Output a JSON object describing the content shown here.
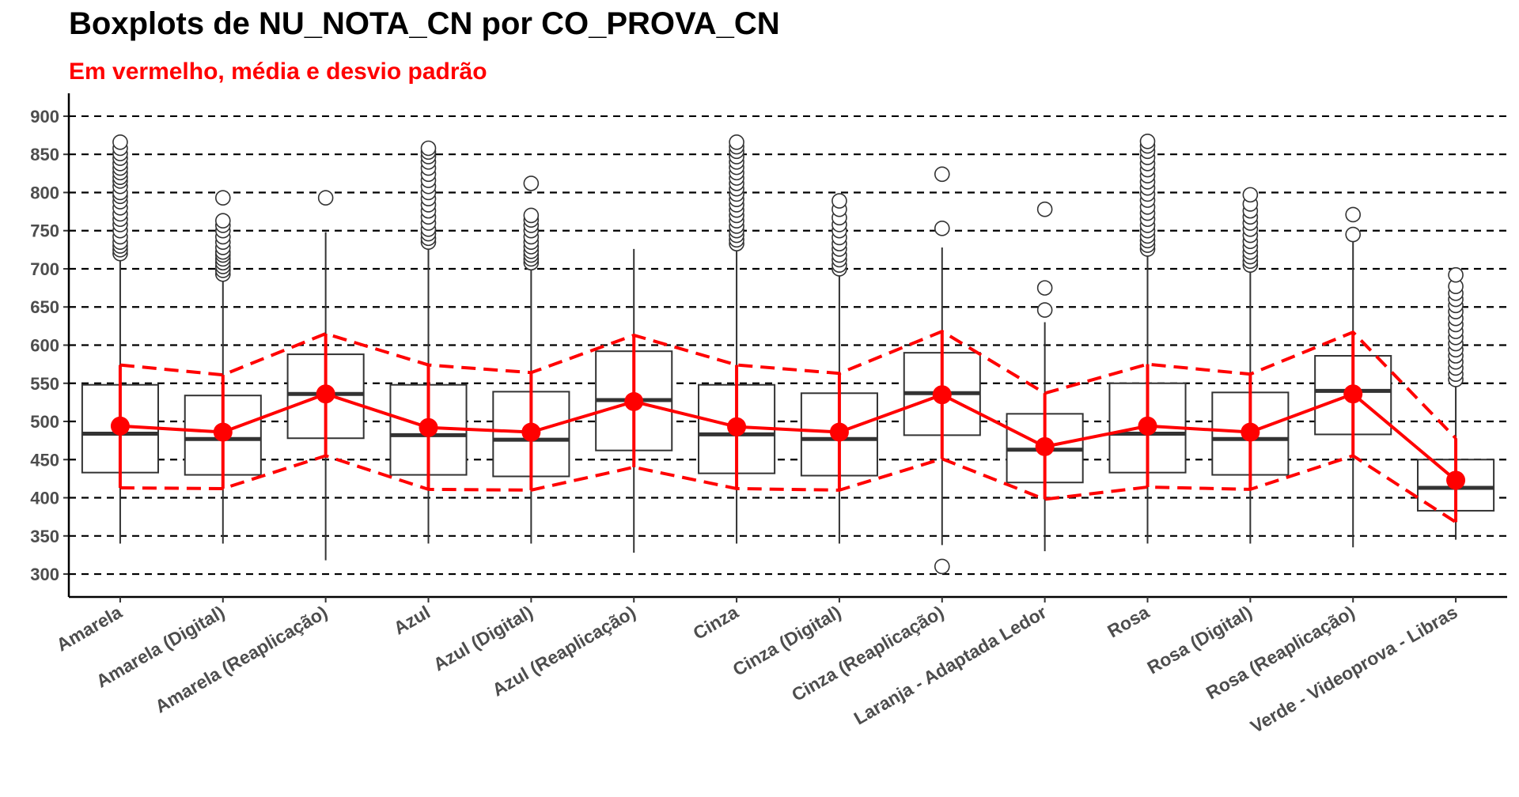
{
  "chart_data": {
    "type": "boxplot",
    "title": "Boxplots de NU_NOTA_CN por CO_PROVA_CN",
    "subtitle": "Em vermelho, média e desvio padrão",
    "xlabel": "",
    "ylabel": "",
    "ylim": [
      270,
      930
    ],
    "yticks": [
      300,
      350,
      400,
      450,
      500,
      550,
      600,
      650,
      700,
      750,
      800,
      850,
      900
    ],
    "grid": "horizontal dashed",
    "colors": {
      "box": "#333333",
      "mean": "#ff0000",
      "grid": "#000000",
      "outlier_fill": "#ffffff"
    },
    "categories": [
      "Amarela",
      "Amarela (Digital)",
      "Amarela (Reaplicação)",
      "Azul",
      "Azul (Digital)",
      "Azul (Reaplicação)",
      "Cinza",
      "Cinza (Digital)",
      "Cinza (Reaplicação)",
      "Laranja - Adaptada Ledor",
      "Rosa",
      "Rosa (Digital)",
      "Rosa (Reaplicação)",
      "Verde - Videoprova - Libras"
    ],
    "boxes": [
      {
        "whisker_low": 340,
        "q1": 433,
        "median": 484,
        "q3": 548,
        "whisker_high": 718,
        "outliers": [
          720,
          725,
          730,
          735,
          742,
          750,
          758,
          765,
          772,
          780,
          788,
          795,
          800,
          808,
          815,
          820,
          826,
          832,
          838,
          845,
          851,
          858,
          866
        ]
      },
      {
        "whisker_low": 340,
        "q1": 430,
        "median": 477,
        "q3": 534,
        "whisker_high": 690,
        "outliers": [
          693,
          698,
          703,
          708,
          713,
          718,
          722,
          728,
          735,
          742,
          750,
          757,
          763,
          793
        ]
      },
      {
        "whisker_low": 318,
        "q1": 478,
        "median": 536,
        "q3": 588,
        "whisker_high": 748,
        "outliers": [
          793
        ]
      },
      {
        "whisker_low": 340,
        "q1": 430,
        "median": 482,
        "q3": 548,
        "whisker_high": 730,
        "outliers": [
          735,
          740,
          746,
          752,
          760,
          768,
          776,
          784,
          792,
          800,
          808,
          816,
          824,
          832,
          840,
          847,
          853,
          858
        ]
      },
      {
        "whisker_low": 340,
        "q1": 428,
        "median": 476,
        "q3": 539,
        "whisker_high": 700,
        "outliers": [
          708,
          713,
          718,
          723,
          729,
          735,
          742,
          750,
          757,
          764,
          770,
          812
        ]
      },
      {
        "whisker_low": 328,
        "q1": 462,
        "median": 528,
        "q3": 592,
        "whisker_high": 726,
        "outliers": []
      },
      {
        "whisker_low": 340,
        "q1": 432,
        "median": 483,
        "q3": 548,
        "whisker_high": 728,
        "outliers": [
          733,
          738,
          744,
          750,
          756,
          763,
          770,
          777,
          784,
          791,
          798,
          805,
          812,
          819,
          826,
          833,
          840,
          847,
          854,
          860,
          866
        ]
      },
      {
        "whisker_low": 340,
        "q1": 429,
        "median": 477,
        "q3": 537,
        "whisker_high": 696,
        "outliers": [
          700,
          705,
          712,
          718,
          726,
          733,
          741,
          750,
          758,
          767,
          778,
          789
        ]
      },
      {
        "whisker_low": 338,
        "q1": 482,
        "median": 537,
        "q3": 590,
        "whisker_high": 728,
        "outliers": [
          310,
          753,
          824
        ]
      },
      {
        "whisker_low": 330,
        "q1": 420,
        "median": 463,
        "q3": 510,
        "whisker_high": 630,
        "outliers": [
          646,
          675,
          778
        ]
      },
      {
        "whisker_low": 340,
        "q1": 433,
        "median": 484,
        "q3": 550,
        "whisker_high": 722,
        "outliers": [
          726,
          731,
          737,
          743,
          750,
          757,
          765,
          773,
          781,
          790,
          798,
          806,
          814,
          822,
          830,
          838,
          846,
          854,
          861,
          867
        ]
      },
      {
        "whisker_low": 340,
        "q1": 430,
        "median": 477,
        "q3": 538,
        "whisker_high": 700,
        "outliers": [
          705,
          710,
          716,
          722,
          729,
          736,
          744,
          752,
          760,
          768,
          776,
          785,
          797
        ]
      },
      {
        "whisker_low": 335,
        "q1": 483,
        "median": 540,
        "q3": 586,
        "whisker_high": 742,
        "outliers": [
          745,
          771
        ]
      },
      {
        "whisker_low": 345,
        "q1": 383,
        "median": 413,
        "q3": 450,
        "whisker_high": 550,
        "outliers": [
          555,
          562,
          570,
          578,
          586,
          594,
          602,
          610,
          618,
          627,
          635,
          644,
          652,
          660,
          668,
          677,
          692
        ]
      }
    ],
    "mean": [
      494,
      486,
      536,
      492,
      486,
      526,
      493,
      486,
      535,
      467,
      494,
      486,
      536,
      423
    ],
    "mean_minus_sd": [
      413,
      412,
      455,
      411,
      410,
      440,
      412,
      410,
      451,
      398,
      414,
      411,
      455,
      368
    ],
    "mean_plus_sd": [
      574,
      561,
      615,
      574,
      564,
      613,
      574,
      563,
      618,
      537,
      575,
      562,
      617,
      478
    ]
  }
}
